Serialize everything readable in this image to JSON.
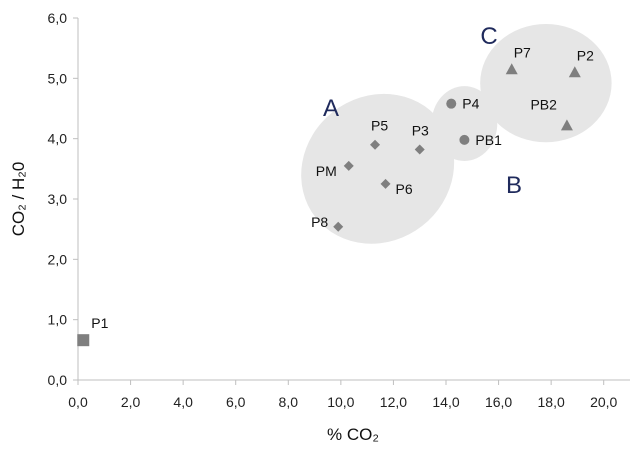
{
  "chart_data": {
    "type": "scatter",
    "xlabel": "% CO₂",
    "ylabel": "CO₂ / H₂0",
    "xlim": [
      0,
      21
    ],
    "ylim": [
      0,
      6
    ],
    "x_ticks": [
      "0,0",
      "2,0",
      "4,0",
      "6,0",
      "8,0",
      "10,0",
      "12,0",
      "14,0",
      "16,0",
      "18,0",
      "20,0"
    ],
    "y_ticks": [
      "0,0",
      "1,0",
      "2,0",
      "3,0",
      "4,0",
      "5,0",
      "6,0"
    ],
    "grid": false,
    "marker_color": "#7f7f7f",
    "group_fill": "#e6e6e6",
    "group_label_color": "#1f2a5c",
    "points": [
      {
        "label": "P1",
        "x": 0.2,
        "y": 0.66,
        "marker": "square"
      },
      {
        "label": "P8",
        "x": 9.9,
        "y": 2.54,
        "marker": "diamond"
      },
      {
        "label": "PM",
        "x": 10.3,
        "y": 3.55,
        "marker": "diamond"
      },
      {
        "label": "P5",
        "x": 11.3,
        "y": 3.9,
        "marker": "diamond"
      },
      {
        "label": "P6",
        "x": 11.7,
        "y": 3.25,
        "marker": "diamond"
      },
      {
        "label": "P3",
        "x": 13.0,
        "y": 3.82,
        "marker": "diamond"
      },
      {
        "label": "P4",
        "x": 14.2,
        "y": 4.58,
        "marker": "circle"
      },
      {
        "label": "PB1",
        "x": 14.7,
        "y": 3.98,
        "marker": "circle"
      },
      {
        "label": "P7",
        "x": 16.5,
        "y": 5.15,
        "marker": "triangle"
      },
      {
        "label": "P2",
        "x": 18.9,
        "y": 5.1,
        "marker": "triangle"
      },
      {
        "label": "PB2",
        "x": 18.6,
        "y": 4.22,
        "marker": "triangle"
      }
    ],
    "groups": [
      {
        "label": "A",
        "cx": 11.4,
        "cy": 3.5,
        "rx": 3.0,
        "ry": 1.2,
        "rotate": -38
      },
      {
        "label": "B",
        "cx": 14.7,
        "cy": 4.25,
        "rx": 1.25,
        "ry": 0.62,
        "rotate": 0
      },
      {
        "label": "C",
        "cx": 17.8,
        "cy": 4.92,
        "rx": 2.5,
        "ry": 0.98,
        "rotate": 0
      }
    ]
  }
}
